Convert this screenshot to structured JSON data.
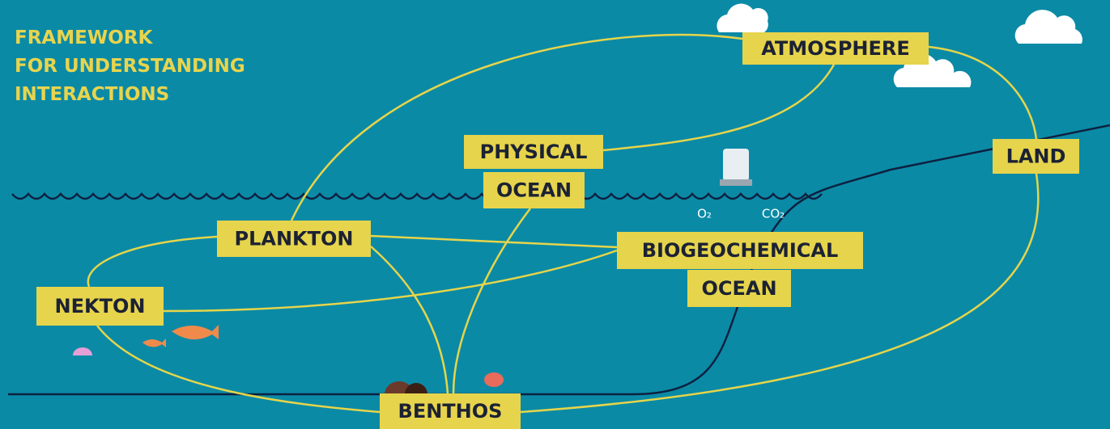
{
  "title": [
    "FRAMEWORK",
    "FOR UNDERSTANDING",
    "INTERACTIONS"
  ],
  "nodes": [
    {
      "label": "ATMOSPHERE"
    },
    {
      "label": "PHYSICAL"
    },
    {
      "label": "OCEAN"
    },
    {
      "label": "LAND"
    },
    {
      "label": "PLANKTON"
    },
    {
      "label": "BIOGEOCHEMICAL"
    },
    {
      "label": "OCEAN"
    },
    {
      "label": "NEKTON"
    },
    {
      "label": "BENTHOS"
    }
  ],
  "gases": [
    "O₂",
    "CO₂"
  ]
}
